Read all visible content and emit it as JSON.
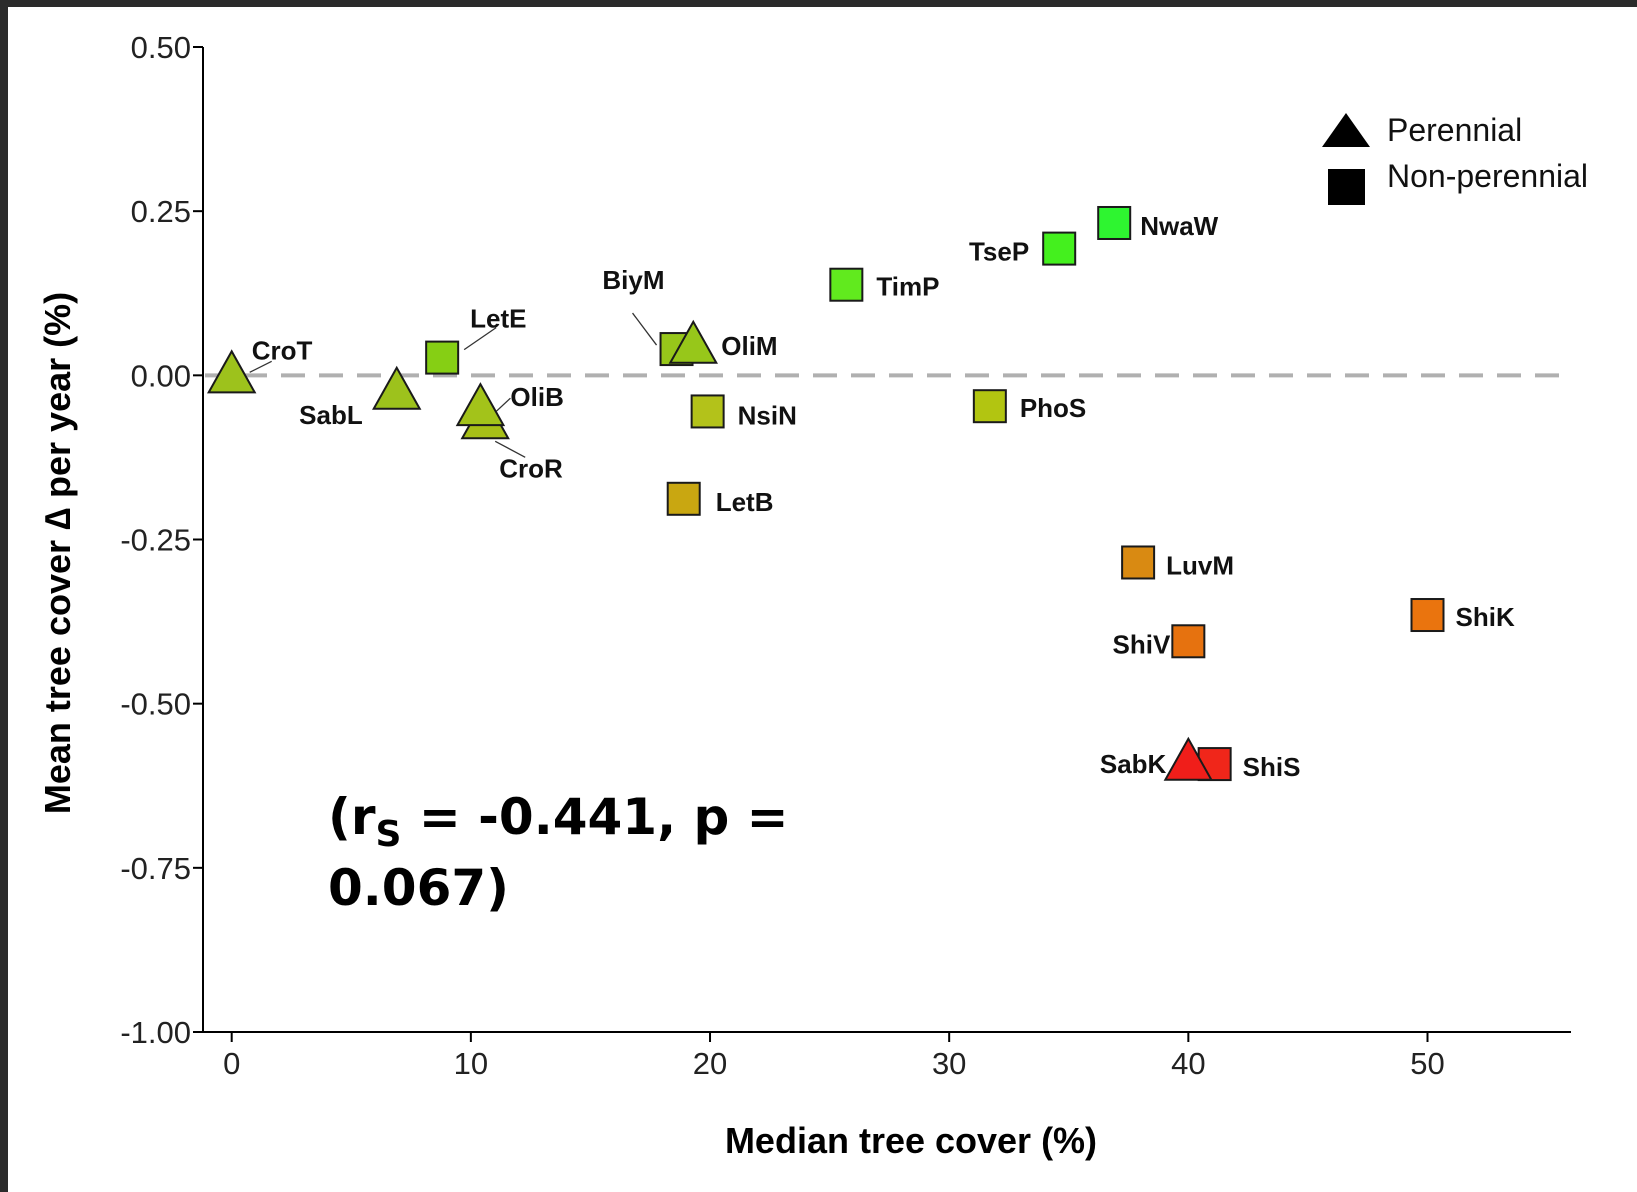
{
  "chart_data": {
    "type": "scatter",
    "xlabel": "Median tree cover (%)",
    "ylabel": "Mean tree cover ∆ per year (%)",
    "xlim": [
      -1.2,
      56
    ],
    "ylim": [
      -1.0,
      0.5
    ],
    "x_ticks": [
      0,
      10,
      20,
      30,
      40,
      50
    ],
    "y_ticks": [
      0.5,
      0.25,
      0.0,
      -0.25,
      -0.5,
      -0.75,
      -1.0
    ],
    "x_tick_labels": [
      "0",
      "10",
      "20",
      "30",
      "40",
      "50"
    ],
    "y_tick_labels": [
      "0.50",
      "0.25",
      "0.00",
      "-0.25",
      "-0.50",
      "-0.75",
      "-1.00"
    ],
    "reference_line": {
      "y": 0.0,
      "style": "dashed",
      "color": "#b0b0b0"
    },
    "legend": {
      "placement": "top-right",
      "items": [
        {
          "shape": "triangle",
          "label": "Perennial"
        },
        {
          "shape": "square",
          "label": "Non-perennial"
        }
      ]
    },
    "annotation": {
      "prefix": "(r",
      "subscript": "S",
      "line1_rest": " = -0.441, p =",
      "line2": "0.067)"
    },
    "points": [
      {
        "label": "CroT",
        "x": 0.0,
        "y": 0.0,
        "shape": "triangle",
        "color": "#9dc21c"
      },
      {
        "label": "SabL",
        "x": 6.9,
        "y": -0.025,
        "shape": "triangle",
        "color": "#9dc21c"
      },
      {
        "label": "LetE",
        "x": 8.8,
        "y": 0.027,
        "shape": "square",
        "color": "#86cf14"
      },
      {
        "label": "CroR",
        "x": 10.6,
        "y": -0.07,
        "shape": "triangle",
        "color": "#a7bf17"
      },
      {
        "label": "OliB",
        "x": 10.4,
        "y": -0.05,
        "shape": "triangle",
        "color": "#a3c31a"
      },
      {
        "label": "BiyM",
        "x": 18.6,
        "y": 0.04,
        "shape": "square",
        "color": "#97c71a"
      },
      {
        "label": "OliM",
        "x": 19.3,
        "y": 0.045,
        "shape": "triangle",
        "color": "#97c71a"
      },
      {
        "label": "NsiN",
        "x": 19.9,
        "y": -0.055,
        "shape": "square",
        "color": "#b3c21a"
      },
      {
        "label": "LetB",
        "x": 18.9,
        "y": -0.188,
        "shape": "square",
        "color": "#c9a711"
      },
      {
        "label": "TimP",
        "x": 25.7,
        "y": 0.138,
        "shape": "square",
        "color": "#61ea1e"
      },
      {
        "label": "TseP",
        "x": 34.6,
        "y": 0.193,
        "shape": "square",
        "color": "#44f01e"
      },
      {
        "label": "NwaW",
        "x": 36.9,
        "y": 0.232,
        "shape": "square",
        "color": "#2ef530"
      },
      {
        "label": "PhoS",
        "x": 31.7,
        "y": -0.047,
        "shape": "square",
        "color": "#b2c511"
      },
      {
        "label": "LuvM",
        "x": 37.9,
        "y": -0.285,
        "shape": "square",
        "color": "#d98a12"
      },
      {
        "label": "ShiV",
        "x": 40.0,
        "y": -0.405,
        "shape": "square",
        "color": "#e6720f"
      },
      {
        "label": "ShiK",
        "x": 50.0,
        "y": -0.365,
        "shape": "square",
        "color": "#ea740e"
      },
      {
        "label": "ShiS",
        "x": 41.1,
        "y": -0.592,
        "shape": "square",
        "color": "#f0261a"
      },
      {
        "label": "SabK",
        "x": 40.0,
        "y": -0.59,
        "shape": "triangle",
        "color": "#f01e1a"
      }
    ]
  }
}
